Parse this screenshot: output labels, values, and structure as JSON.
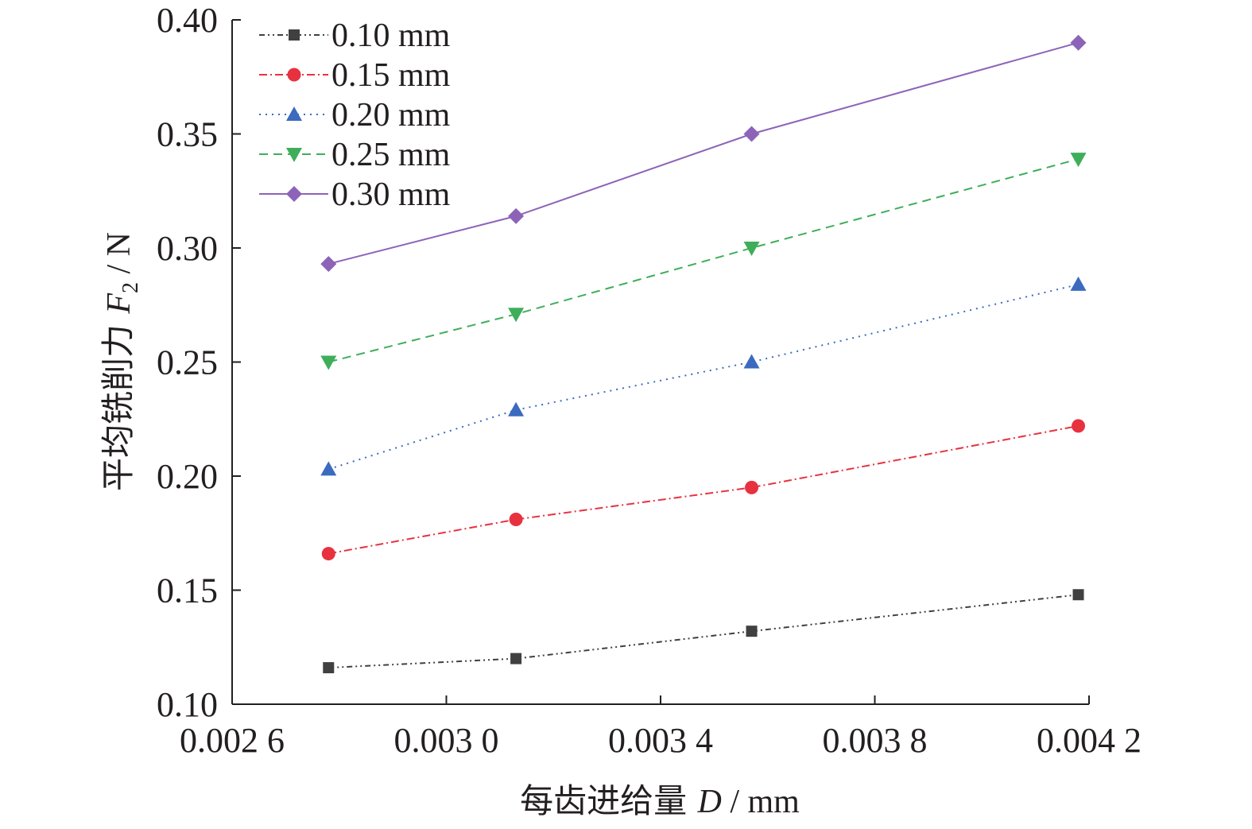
{
  "chart_data": {
    "type": "line",
    "xlabel": {
      "prefix": "每齿进给量 ",
      "symbol": "D",
      "suffix": " / mm"
    },
    "ylabel": {
      "prefix": "平均铣削力 ",
      "symbol": "F",
      "subscript": "2",
      "suffix": " / N"
    },
    "xlim": [
      0.0026,
      0.0042
    ],
    "ylim": [
      0.1,
      0.4
    ],
    "x_ticks": [
      0.0026,
      0.003,
      0.0034,
      0.0038,
      0.0042
    ],
    "x_tick_labels": [
      "0.002 6",
      "0.003 0",
      "0.003 4",
      "0.003 8",
      "0.004 2"
    ],
    "y_ticks": [
      0.1,
      0.15,
      0.2,
      0.25,
      0.3,
      0.35,
      0.4
    ],
    "y_tick_labels": [
      "0.10",
      "0.15",
      "0.20",
      "0.25",
      "0.30",
      "0.35",
      "0.40"
    ],
    "x": [
      0.00278,
      0.00313,
      0.00357,
      0.00418
    ],
    "legend_position": "top-left",
    "grid": false,
    "series": [
      {
        "name": "0.10 mm",
        "values": [
          0.116,
          0.12,
          0.132,
          0.148
        ],
        "color": "#404040",
        "marker": "square",
        "dash": "dash-dot-dot"
      },
      {
        "name": "0.15 mm",
        "values": [
          0.166,
          0.181,
          0.195,
          0.222
        ],
        "color": "#e8313f",
        "marker": "circle",
        "dash": "dash-dot"
      },
      {
        "name": "0.20 mm",
        "values": [
          0.203,
          0.229,
          0.25,
          0.284
        ],
        "color": "#3b6bbf",
        "marker": "triangle-up",
        "dash": "dot"
      },
      {
        "name": "0.25 mm",
        "values": [
          0.25,
          0.271,
          0.3,
          0.339
        ],
        "color": "#3fae5a",
        "marker": "triangle-down",
        "dash": "dash"
      },
      {
        "name": "0.30 mm",
        "values": [
          0.293,
          0.314,
          0.35,
          0.39
        ],
        "color": "#8d63b8",
        "marker": "diamond",
        "dash": "solid"
      }
    ]
  }
}
